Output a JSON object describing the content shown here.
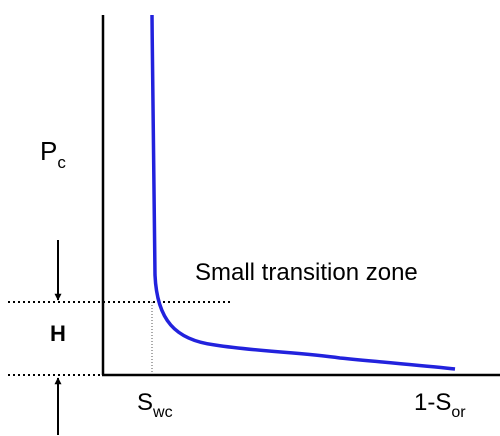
{
  "diagram": {
    "y_axis_label": {
      "main": "P",
      "sub": "c"
    },
    "height_label": "H",
    "annotation": "Small transition zone",
    "x_labels": [
      {
        "main": "S",
        "sub": "wc"
      },
      {
        "main": "1-S",
        "sub": "or"
      }
    ]
  }
}
